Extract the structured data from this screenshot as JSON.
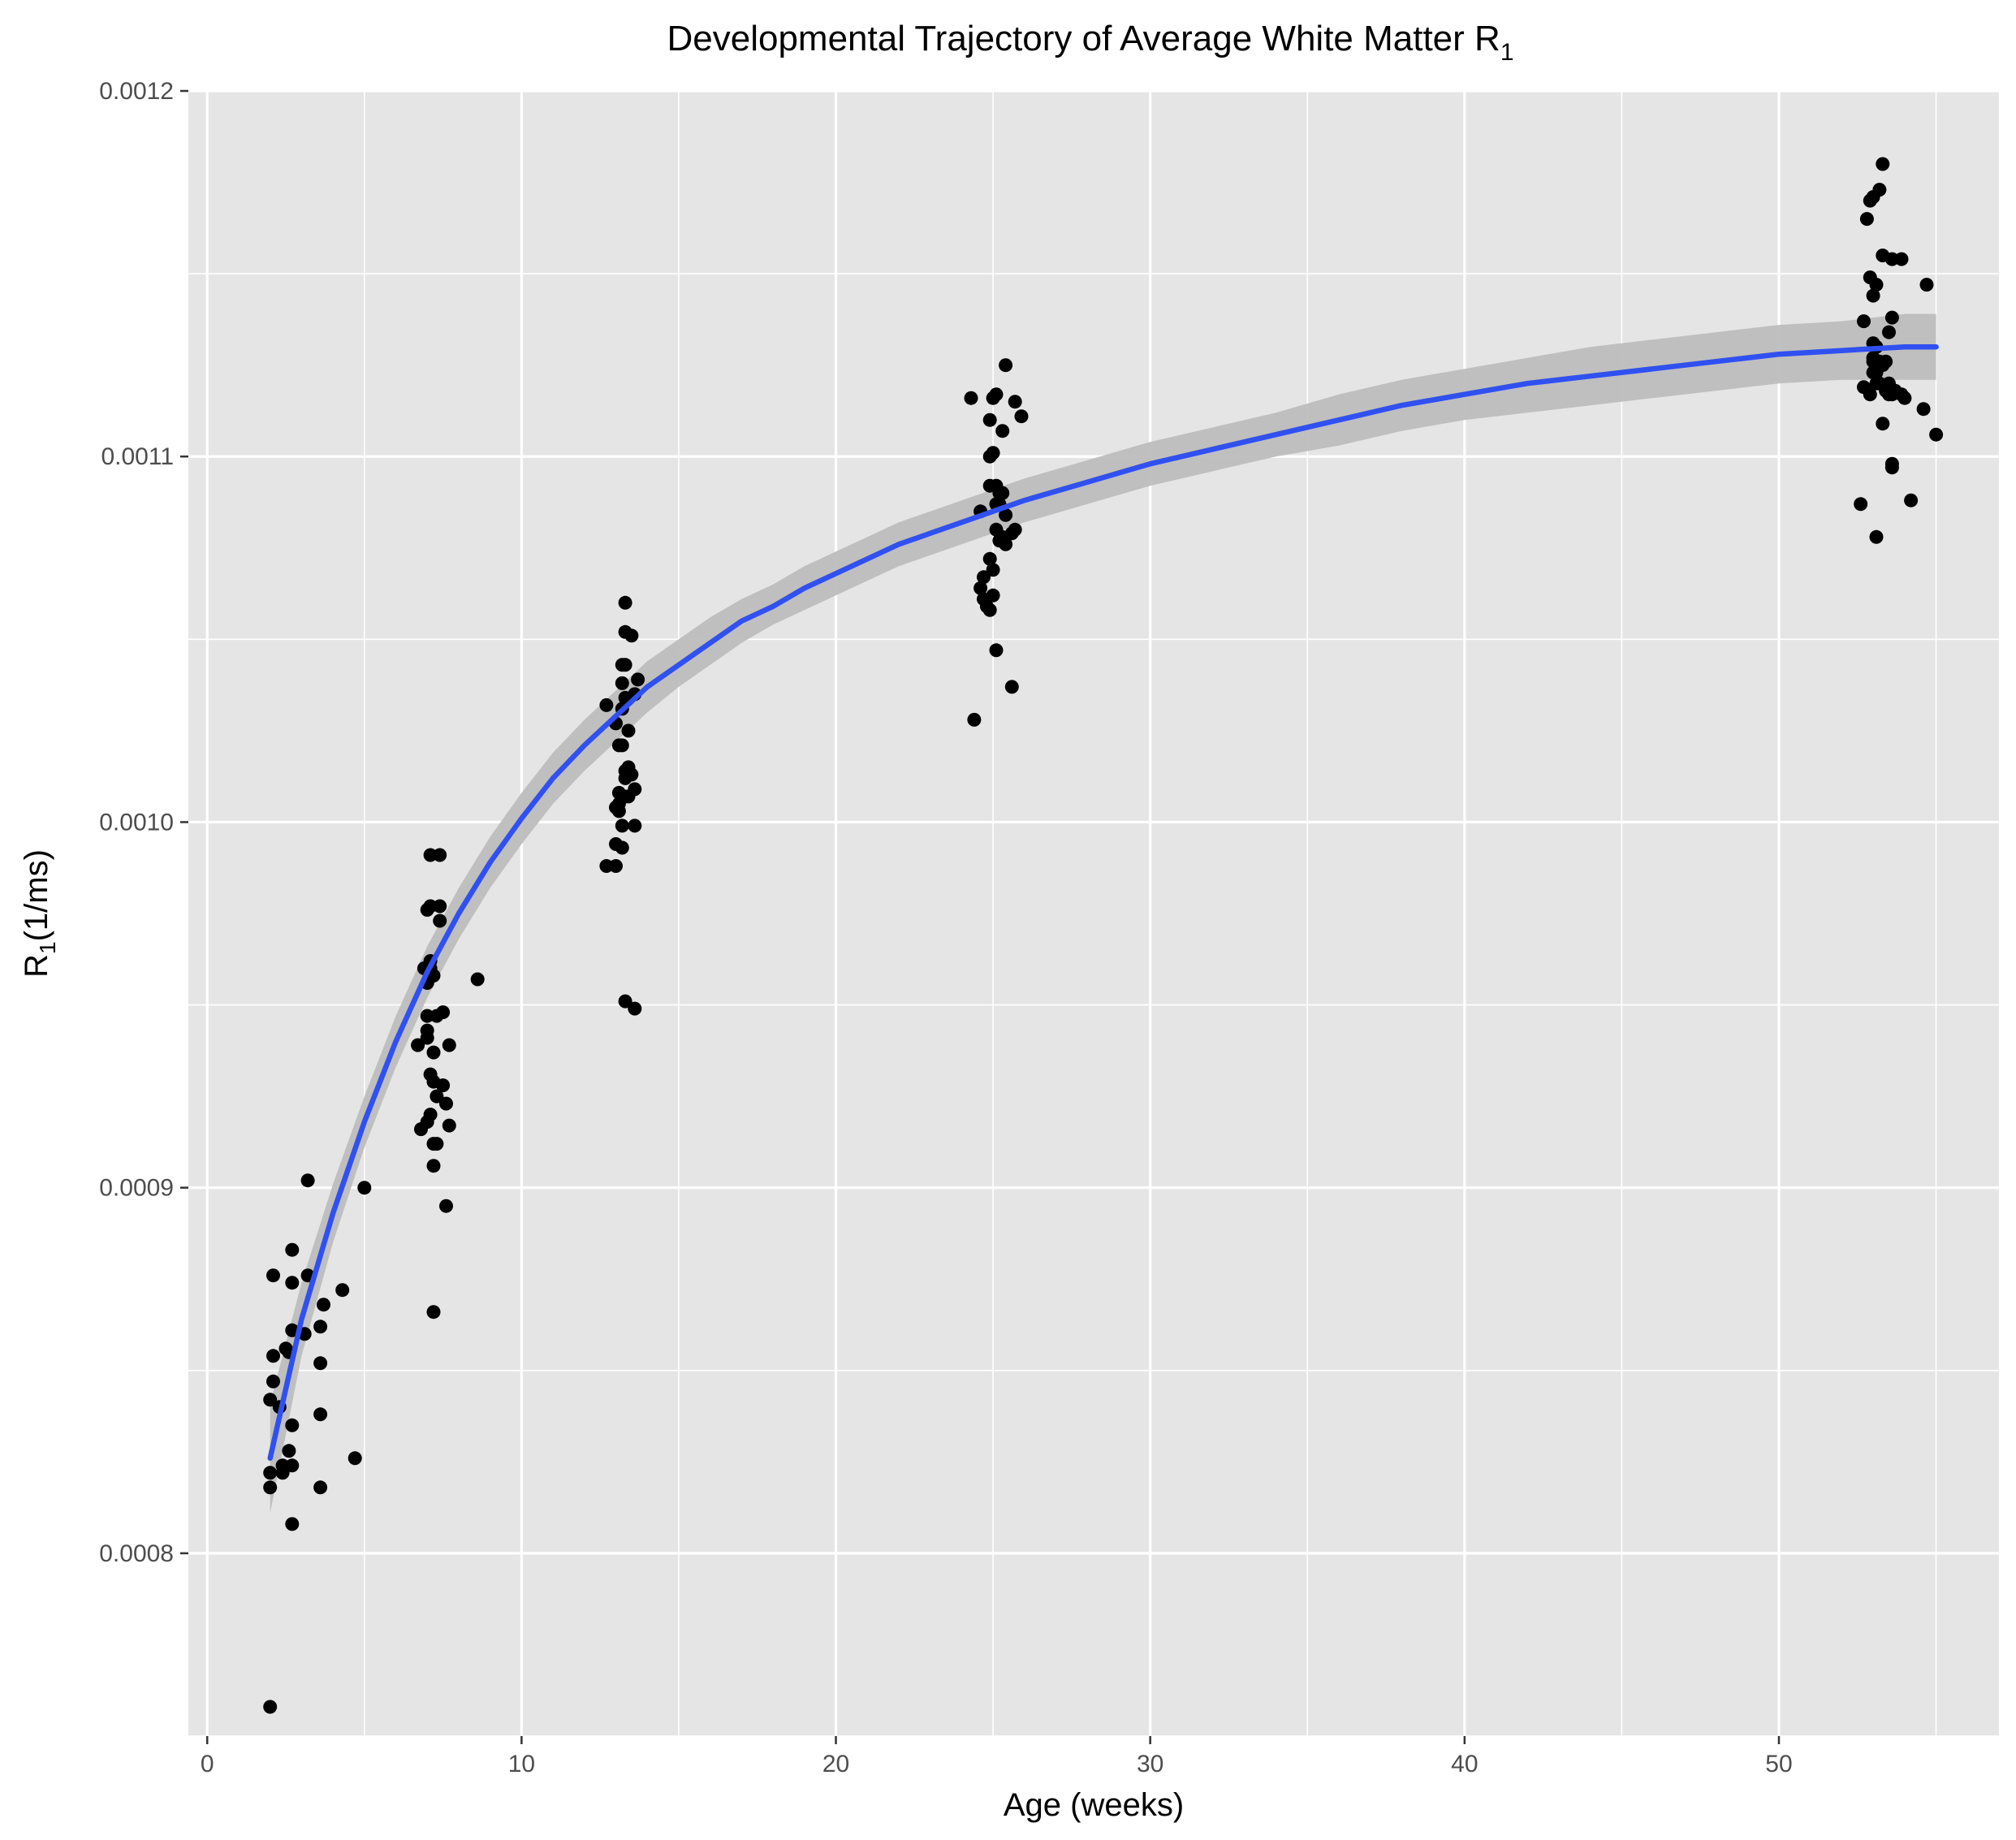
{
  "chart_data": {
    "type": "scatter",
    "title": "Developmental Trajectory of Average White Matter R",
    "title_subscript": "1",
    "xlabel": "Age (weeks)",
    "ylabel_main": "R",
    "ylabel_subscript": "1",
    "ylabel_unit": "(1/ms)",
    "xlim": [
      -0.6,
      57
    ],
    "ylim": [
      0.00075,
      0.0012
    ],
    "x_ticks": [
      0,
      10,
      20,
      30,
      40,
      50
    ],
    "x_tick_labels": [
      "0",
      "10",
      "20",
      "30",
      "40",
      "50"
    ],
    "x_minor_ticks": [
      5,
      15,
      25,
      35,
      45,
      55
    ],
    "y_ticks": [
      0.0008,
      0.0009,
      0.001,
      0.0011,
      0.0012
    ],
    "y_tick_labels": [
      "0.0008",
      "0.0009",
      "0.0010",
      "0.0011",
      "0.0012"
    ],
    "y_minor_ticks": [
      0.00075,
      0.00085,
      0.00095,
      0.00105,
      0.00115
    ],
    "grid": true,
    "legend": "none",
    "colors": {
      "panel": "#e5e5e5",
      "grid": "#ffffff",
      "points": "#000000",
      "fit_line": "#3050f0",
      "confidence_band": "#bdbdbd"
    },
    "points": [
      [
        2.0,
        0.000758
      ],
      [
        2.0,
        0.000818
      ],
      [
        2.0,
        0.000822
      ],
      [
        2.0,
        0.000842
      ],
      [
        2.1,
        0.000847
      ],
      [
        2.1,
        0.000854
      ],
      [
        2.1,
        0.000876
      ],
      [
        2.3,
        0.00084
      ],
      [
        2.4,
        0.000822
      ],
      [
        2.4,
        0.000824
      ],
      [
        2.5,
        0.000856
      ],
      [
        2.6,
        0.000828
      ],
      [
        2.6,
        0.000855
      ],
      [
        2.7,
        0.000808
      ],
      [
        2.7,
        0.000824
      ],
      [
        2.7,
        0.000835
      ],
      [
        2.7,
        0.000861
      ],
      [
        2.7,
        0.000874
      ],
      [
        2.7,
        0.000883
      ],
      [
        3.1,
        0.00086
      ],
      [
        3.2,
        0.000876
      ],
      [
        3.2,
        0.000902
      ],
      [
        3.6,
        0.000818
      ],
      [
        3.6,
        0.000838
      ],
      [
        3.6,
        0.000852
      ],
      [
        3.6,
        0.000862
      ],
      [
        3.7,
        0.000868
      ],
      [
        4.3,
        0.000872
      ],
      [
        4.7,
        0.000826
      ],
      [
        5.0,
        0.0009
      ],
      [
        6.7,
        0.000939
      ],
      [
        6.8,
        0.000916
      ],
      [
        6.9,
        0.00096
      ],
      [
        7.0,
        0.000918
      ],
      [
        7.0,
        0.000941
      ],
      [
        7.0,
        0.000943
      ],
      [
        7.0,
        0.000947
      ],
      [
        7.0,
        0.000956
      ],
      [
        7.0,
        0.000976
      ],
      [
        7.1,
        0.00092
      ],
      [
        7.1,
        0.000931
      ],
      [
        7.1,
        0.00096
      ],
      [
        7.1,
        0.000962
      ],
      [
        7.1,
        0.000977
      ],
      [
        7.1,
        0.000991
      ],
      [
        7.2,
        0.000866
      ],
      [
        7.2,
        0.000906
      ],
      [
        7.2,
        0.000912
      ],
      [
        7.2,
        0.000929
      ],
      [
        7.2,
        0.000937
      ],
      [
        7.2,
        0.000958
      ],
      [
        7.3,
        0.000912
      ],
      [
        7.3,
        0.000925
      ],
      [
        7.3,
        0.000947
      ],
      [
        7.4,
        0.000973
      ],
      [
        7.4,
        0.000977
      ],
      [
        7.4,
        0.000991
      ],
      [
        7.5,
        0.000928
      ],
      [
        7.5,
        0.000948
      ],
      [
        7.6,
        0.000895
      ],
      [
        7.6,
        0.000923
      ],
      [
        7.7,
        0.000917
      ],
      [
        7.7,
        0.000939
      ],
      [
        8.6,
        0.000957
      ],
      [
        12.7,
        0.000988
      ],
      [
        12.7,
        0.001032
      ],
      [
        13.0,
        0.000994
      ],
      [
        13.0,
        0.001027
      ],
      [
        13.0,
        0.001004
      ],
      [
        13.0,
        0.000988
      ],
      [
        13.1,
        0.001003
      ],
      [
        13.1,
        0.001005
      ],
      [
        13.1,
        0.001021
      ],
      [
        13.1,
        0.001008
      ],
      [
        13.2,
        0.000999
      ],
      [
        13.2,
        0.001021
      ],
      [
        13.2,
        0.001031
      ],
      [
        13.2,
        0.001043
      ],
      [
        13.2,
        0.000993
      ],
      [
        13.2,
        0.001038
      ],
      [
        13.3,
        0.000951
      ],
      [
        13.3,
        0.001007
      ],
      [
        13.3,
        0.001012
      ],
      [
        13.3,
        0.001014
      ],
      [
        13.3,
        0.001034
      ],
      [
        13.3,
        0.001043
      ],
      [
        13.3,
        0.001052
      ],
      [
        13.3,
        0.00106
      ],
      [
        13.4,
        0.001007
      ],
      [
        13.4,
        0.001015
      ],
      [
        13.4,
        0.001025
      ],
      [
        13.5,
        0.001051
      ],
      [
        13.5,
        0.001013
      ],
      [
        13.6,
        0.000949
      ],
      [
        13.6,
        0.000999
      ],
      [
        13.6,
        0.001009
      ],
      [
        13.6,
        0.001035
      ],
      [
        13.7,
        0.001039
      ],
      [
        24.3,
        0.001116
      ],
      [
        24.4,
        0.001028
      ],
      [
        24.6,
        0.001064
      ],
      [
        24.6,
        0.001085
      ],
      [
        24.7,
        0.001061
      ],
      [
        24.7,
        0.001067
      ],
      [
        24.8,
        0.001059
      ],
      [
        24.9,
        0.001058
      ],
      [
        24.9,
        0.001072
      ],
      [
        24.9,
        0.001092
      ],
      [
        24.9,
        0.0011
      ],
      [
        24.9,
        0.00111
      ],
      [
        25.0,
        0.001062
      ],
      [
        25.0,
        0.001069
      ],
      [
        25.0,
        0.001101
      ],
      [
        25.0,
        0.001116
      ],
      [
        25.1,
        0.001047
      ],
      [
        25.1,
        0.00108
      ],
      [
        25.1,
        0.001087
      ],
      [
        25.1,
        0.001092
      ],
      [
        25.1,
        0.001117
      ],
      [
        25.2,
        0.001077
      ],
      [
        25.2,
        0.001087
      ],
      [
        25.2,
        0.00109
      ],
      [
        25.3,
        0.001078
      ],
      [
        25.3,
        0.00109
      ],
      [
        25.3,
        0.001107
      ],
      [
        25.4,
        0.001076
      ],
      [
        25.4,
        0.001084
      ],
      [
        25.4,
        0.001125
      ],
      [
        25.6,
        0.001037
      ],
      [
        25.6,
        0.001079
      ],
      [
        25.7,
        0.00108
      ],
      [
        25.7,
        0.001115
      ],
      [
        25.9,
        0.001111
      ],
      [
        52.6,
        0.001087
      ],
      [
        52.7,
        0.001119
      ],
      [
        52.7,
        0.001137
      ],
      [
        52.8,
        0.001165
      ],
      [
        52.9,
        0.001117
      ],
      [
        52.9,
        0.001149
      ],
      [
        52.9,
        0.00117
      ],
      [
        53.0,
        0.001123
      ],
      [
        53.0,
        0.001126
      ],
      [
        53.0,
        0.001127
      ],
      [
        53.0,
        0.001131
      ],
      [
        53.0,
        0.001144
      ],
      [
        53.0,
        0.001171
      ],
      [
        53.1,
        0.001078
      ],
      [
        53.1,
        0.00112
      ],
      [
        53.1,
        0.001123
      ],
      [
        53.1,
        0.00113
      ],
      [
        53.1,
        0.001147
      ],
      [
        53.2,
        0.00112
      ],
      [
        53.2,
        0.001126
      ],
      [
        53.2,
        0.001173
      ],
      [
        53.3,
        0.001109
      ],
      [
        53.3,
        0.001125
      ],
      [
        53.3,
        0.001155
      ],
      [
        53.3,
        0.00118
      ],
      [
        53.4,
        0.001118
      ],
      [
        53.4,
        0.001126
      ],
      [
        53.5,
        0.001117
      ],
      [
        53.5,
        0.00112
      ],
      [
        53.5,
        0.001134
      ],
      [
        53.6,
        0.001097
      ],
      [
        53.6,
        0.001098
      ],
      [
        53.6,
        0.001117
      ],
      [
        53.6,
        0.001138
      ],
      [
        53.6,
        0.001154
      ],
      [
        53.7,
        0.001118
      ],
      [
        53.9,
        0.001117
      ],
      [
        53.9,
        0.001154
      ],
      [
        54.0,
        0.001116
      ],
      [
        54.2,
        0.001088
      ],
      [
        54.6,
        0.001113
      ],
      [
        54.7,
        0.001147
      ],
      [
        55.0,
        0.001106
      ]
    ],
    "fit_curve": {
      "x": [
        2,
        3,
        4,
        5,
        6,
        7,
        8,
        9,
        10,
        11,
        12,
        13,
        14,
        15,
        16,
        17,
        18,
        19,
        20,
        22,
        24,
        26,
        28,
        30,
        32,
        34,
        36,
        38,
        40,
        42,
        44,
        46,
        48,
        50,
        52,
        54,
        55
      ],
      "y": [
        0.000826,
        0.000864,
        0.000893,
        0.000918,
        0.00094,
        0.000959,
        0.000975,
        0.000989,
        0.001001,
        0.001012,
        0.001021,
        0.001029,
        0.001037,
        0.001043,
        0.001049,
        0.001055,
        0.001059,
        0.001064,
        0.001068,
        0.001076,
        0.001082,
        0.001088,
        0.001093,
        0.001098,
        0.001102,
        0.001106,
        0.00111,
        0.001114,
        0.001117,
        0.00112,
        0.001122,
        0.001124,
        0.001126,
        0.001128,
        0.001129,
        0.00113,
        0.00113
      ],
      "ci_lower": [
        0.000811,
        0.000854,
        0.000885,
        0.000911,
        0.000933,
        0.000952,
        0.000968,
        0.000982,
        0.000994,
        0.001005,
        0.001014,
        0.001022,
        0.00103,
        0.001037,
        0.001043,
        0.001049,
        0.001054,
        0.001058,
        0.001062,
        0.00107,
        0.001076,
        0.001082,
        0.001087,
        0.001092,
        0.001096,
        0.0011,
        0.001103,
        0.001107,
        0.00111,
        0.001112,
        0.001114,
        0.001116,
        0.001118,
        0.00112,
        0.001121,
        0.001121,
        0.001121
      ],
      "ci_upper": [
        0.000841,
        0.000874,
        0.000901,
        0.000925,
        0.000947,
        0.000966,
        0.000982,
        0.000996,
        0.001008,
        0.001019,
        0.001028,
        0.001036,
        0.001044,
        0.00105,
        0.001056,
        0.001061,
        0.001065,
        0.00107,
        0.001074,
        0.001082,
        0.001088,
        0.001094,
        0.001099,
        0.001104,
        0.001108,
        0.001112,
        0.001117,
        0.001121,
        0.001124,
        0.001127,
        0.00113,
        0.001132,
        0.001134,
        0.001136,
        0.001137,
        0.001139,
        0.001139
      ]
    }
  }
}
